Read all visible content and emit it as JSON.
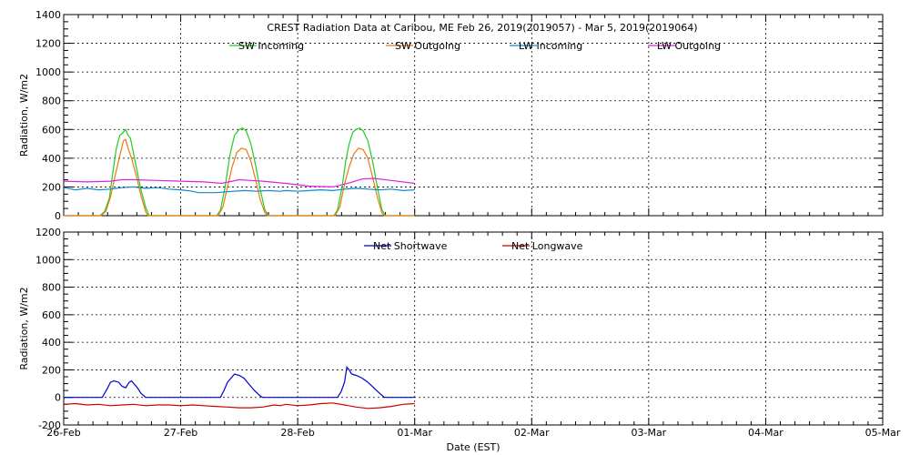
{
  "title": "CREST Radiation Data at Caribou, ME   Feb 26, 2019(2019057) - Mar  5, 2019(2019064)",
  "xlabel": "Date (EST)",
  "x_ticks": [
    "26-Feb",
    "27-Feb",
    "28-Feb",
    "01-Mar",
    "02-Mar",
    "03-Mar",
    "04-Mar",
    "05-Mar"
  ],
  "chart_data": [
    {
      "type": "line",
      "ylabel": "Radiation, W/m2",
      "xlim": [
        0,
        7
      ],
      "ylim": [
        0,
        1400
      ],
      "y_ticks": [
        0,
        200,
        400,
        600,
        800,
        1000,
        1200,
        1400
      ],
      "grid": true,
      "legend_placement": "top",
      "series": [
        {
          "name": "SW Incoming",
          "color": "#22cc22",
          "points": [
            [
              0.0,
              0
            ],
            [
              0.31,
              0
            ],
            [
              0.35,
              30
            ],
            [
              0.39,
              120
            ],
            [
              0.42,
              300
            ],
            [
              0.45,
              470
            ],
            [
              0.48,
              560
            ],
            [
              0.51,
              580
            ],
            [
              0.53,
              600
            ],
            [
              0.55,
              560
            ],
            [
              0.57,
              540
            ],
            [
              0.59,
              460
            ],
            [
              0.62,
              340
            ],
            [
              0.66,
              180
            ],
            [
              0.7,
              60
            ],
            [
              0.73,
              0
            ],
            [
              1.31,
              0
            ],
            [
              1.34,
              40
            ],
            [
              1.38,
              200
            ],
            [
              1.42,
              420
            ],
            [
              1.46,
              560
            ],
            [
              1.5,
              600
            ],
            [
              1.53,
              610
            ],
            [
              1.56,
              590
            ],
            [
              1.6,
              500
            ],
            [
              1.64,
              350
            ],
            [
              1.68,
              180
            ],
            [
              1.72,
              40
            ],
            [
              1.75,
              0
            ],
            [
              2.31,
              0
            ],
            [
              2.34,
              40
            ],
            [
              2.38,
              200
            ],
            [
              2.41,
              380
            ],
            [
              2.44,
              500
            ],
            [
              2.47,
              580
            ],
            [
              2.5,
              600
            ],
            [
              2.53,
              610
            ],
            [
              2.56,
              590
            ],
            [
              2.6,
              520
            ],
            [
              2.64,
              380
            ],
            [
              2.68,
              200
            ],
            [
              2.72,
              40
            ],
            [
              2.75,
              0
            ],
            [
              3.0,
              0
            ]
          ]
        },
        {
          "name": "SW Outgoing",
          "color": "#ee7711",
          "points": [
            [
              0.0,
              0
            ],
            [
              0.32,
              0
            ],
            [
              0.36,
              30
            ],
            [
              0.4,
              130
            ],
            [
              0.44,
              280
            ],
            [
              0.48,
              420
            ],
            [
              0.51,
              520
            ],
            [
              0.53,
              530
            ],
            [
              0.55,
              470
            ],
            [
              0.58,
              400
            ],
            [
              0.62,
              280
            ],
            [
              0.66,
              140
            ],
            [
              0.7,
              30
            ],
            [
              0.72,
              0
            ],
            [
              1.32,
              0
            ],
            [
              1.36,
              60
            ],
            [
              1.4,
              200
            ],
            [
              1.44,
              340
            ],
            [
              1.48,
              440
            ],
            [
              1.52,
              470
            ],
            [
              1.56,
              460
            ],
            [
              1.6,
              380
            ],
            [
              1.64,
              250
            ],
            [
              1.68,
              110
            ],
            [
              1.72,
              20
            ],
            [
              1.74,
              0
            ],
            [
              2.32,
              0
            ],
            [
              2.36,
              60
            ],
            [
              2.4,
              220
            ],
            [
              2.44,
              340
            ],
            [
              2.48,
              430
            ],
            [
              2.52,
              470
            ],
            [
              2.56,
              460
            ],
            [
              2.6,
              400
            ],
            [
              2.64,
              270
            ],
            [
              2.68,
              130
            ],
            [
              2.72,
              20
            ],
            [
              2.74,
              0
            ],
            [
              3.0,
              0
            ]
          ]
        },
        {
          "name": "LW Incoming",
          "color": "#1188cc",
          "points": [
            [
              0.0,
              195
            ],
            [
              0.1,
              180
            ],
            [
              0.2,
              190
            ],
            [
              0.3,
              180
            ],
            [
              0.4,
              185
            ],
            [
              0.5,
              195
            ],
            [
              0.6,
              200
            ],
            [
              0.7,
              190
            ],
            [
              0.8,
              195
            ],
            [
              0.9,
              185
            ],
            [
              1.0,
              180
            ],
            [
              1.1,
              170
            ],
            [
              1.15,
              160
            ],
            [
              1.3,
              160
            ],
            [
              1.45,
              170
            ],
            [
              1.55,
              175
            ],
            [
              1.65,
              170
            ],
            [
              1.75,
              175
            ],
            [
              1.85,
              170
            ],
            [
              1.9,
              175
            ],
            [
              2.0,
              170
            ],
            [
              2.1,
              175
            ],
            [
              2.2,
              180
            ],
            [
              2.3,
              175
            ],
            [
              2.4,
              185
            ],
            [
              2.5,
              190
            ],
            [
              2.6,
              185
            ],
            [
              2.7,
              180
            ],
            [
              2.8,
              185
            ],
            [
              2.9,
              175
            ],
            [
              3.0,
              180
            ]
          ]
        },
        {
          "name": "LW Outgoing",
          "color": "#dd22dd",
          "points": [
            [
              0.0,
              240
            ],
            [
              0.2,
              235
            ],
            [
              0.4,
              240
            ],
            [
              0.5,
              250
            ],
            [
              0.6,
              250
            ],
            [
              0.8,
              245
            ],
            [
              1.0,
              240
            ],
            [
              1.2,
              235
            ],
            [
              1.35,
              225
            ],
            [
              1.5,
              250
            ],
            [
              1.6,
              245
            ],
            [
              1.7,
              240
            ],
            [
              1.9,
              225
            ],
            [
              2.1,
              205
            ],
            [
              2.3,
              200
            ],
            [
              2.45,
              230
            ],
            [
              2.55,
              255
            ],
            [
              2.65,
              260
            ],
            [
              2.8,
              245
            ],
            [
              3.0,
              225
            ]
          ]
        }
      ]
    },
    {
      "type": "line",
      "ylabel": "Radiation, W/m2",
      "xlim": [
        0,
        7
      ],
      "ylim": [
        -200,
        1200
      ],
      "y_ticks": [
        -200,
        0,
        200,
        400,
        600,
        800,
        1000,
        1200
      ],
      "grid": true,
      "legend_placement": "top",
      "series": [
        {
          "name": "Net Shortwave",
          "color": "#0000cc",
          "points": [
            [
              0.0,
              0
            ],
            [
              0.33,
              0
            ],
            [
              0.37,
              60
            ],
            [
              0.4,
              110
            ],
            [
              0.43,
              120
            ],
            [
              0.47,
              110
            ],
            [
              0.5,
              80
            ],
            [
              0.53,
              70
            ],
            [
              0.56,
              110
            ],
            [
              0.58,
              120
            ],
            [
              0.6,
              100
            ],
            [
              0.63,
              70
            ],
            [
              0.66,
              30
            ],
            [
              0.7,
              0
            ],
            [
              1.34,
              0
            ],
            [
              1.37,
              50
            ],
            [
              1.4,
              110
            ],
            [
              1.43,
              140
            ],
            [
              1.46,
              170
            ],
            [
              1.5,
              160
            ],
            [
              1.54,
              140
            ],
            [
              1.58,
              100
            ],
            [
              1.63,
              50
            ],
            [
              1.68,
              10
            ],
            [
              1.7,
              0
            ],
            [
              2.34,
              0
            ],
            [
              2.37,
              40
            ],
            [
              2.4,
              110
            ],
            [
              2.42,
              220
            ],
            [
              2.44,
              200
            ],
            [
              2.46,
              170
            ],
            [
              2.5,
              160
            ],
            [
              2.55,
              140
            ],
            [
              2.6,
              110
            ],
            [
              2.65,
              70
            ],
            [
              2.7,
              30
            ],
            [
              2.74,
              0
            ],
            [
              3.0,
              0
            ]
          ]
        },
        {
          "name": "Net Longwave",
          "color": "#cc0000",
          "points": [
            [
              0.0,
              -50
            ],
            [
              0.1,
              -45
            ],
            [
              0.2,
              -55
            ],
            [
              0.3,
              -50
            ],
            [
              0.4,
              -60
            ],
            [
              0.5,
              -55
            ],
            [
              0.6,
              -50
            ],
            [
              0.7,
              -60
            ],
            [
              0.8,
              -55
            ],
            [
              0.9,
              -55
            ],
            [
              1.0,
              -60
            ],
            [
              1.1,
              -55
            ],
            [
              1.2,
              -60
            ],
            [
              1.3,
              -65
            ],
            [
              1.4,
              -70
            ],
            [
              1.5,
              -75
            ],
            [
              1.6,
              -75
            ],
            [
              1.7,
              -70
            ],
            [
              1.8,
              -55
            ],
            [
              1.85,
              -60
            ],
            [
              1.9,
              -50
            ],
            [
              2.0,
              -60
            ],
            [
              2.1,
              -55
            ],
            [
              2.2,
              -45
            ],
            [
              2.3,
              -40
            ],
            [
              2.4,
              -55
            ],
            [
              2.5,
              -70
            ],
            [
              2.6,
              -80
            ],
            [
              2.7,
              -75
            ],
            [
              2.8,
              -65
            ],
            [
              2.9,
              -50
            ],
            [
              3.0,
              -45
            ]
          ]
        }
      ]
    }
  ]
}
